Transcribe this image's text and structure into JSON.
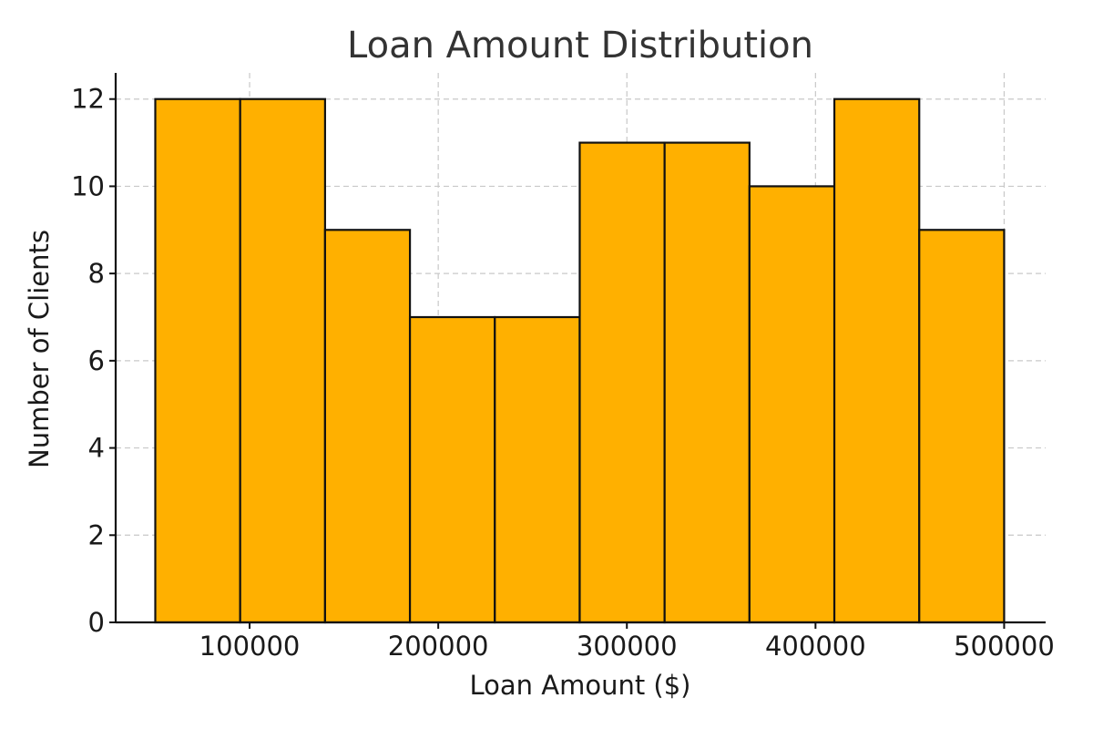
{
  "chart_data": {
    "type": "bar",
    "title": "Loan Amount Distribution",
    "xlabel": "Loan Amount ($)",
    "ylabel": "Number of Clients",
    "bin_edges": [
      50000,
      95000,
      140000,
      185000,
      230000,
      275000,
      320000,
      365000,
      410000,
      455000,
      500000
    ],
    "values": [
      12,
      12,
      9,
      7,
      7,
      11,
      11,
      10,
      12,
      9
    ],
    "xlim": [
      29000,
      522000
    ],
    "ylim": [
      0,
      12.6
    ],
    "xticks": [
      100000,
      200000,
      300000,
      400000,
      500000
    ],
    "xtick_labels": [
      "100000",
      "200000",
      "300000",
      "400000",
      "500000"
    ],
    "yticks": [
      0,
      2,
      4,
      6,
      8,
      10,
      12
    ],
    "ytick_labels": [
      "0",
      "2",
      "4",
      "6",
      "8",
      "10",
      "12"
    ],
    "grid": true,
    "bar_color": "#FFB000",
    "edge_color": "#111111"
  }
}
